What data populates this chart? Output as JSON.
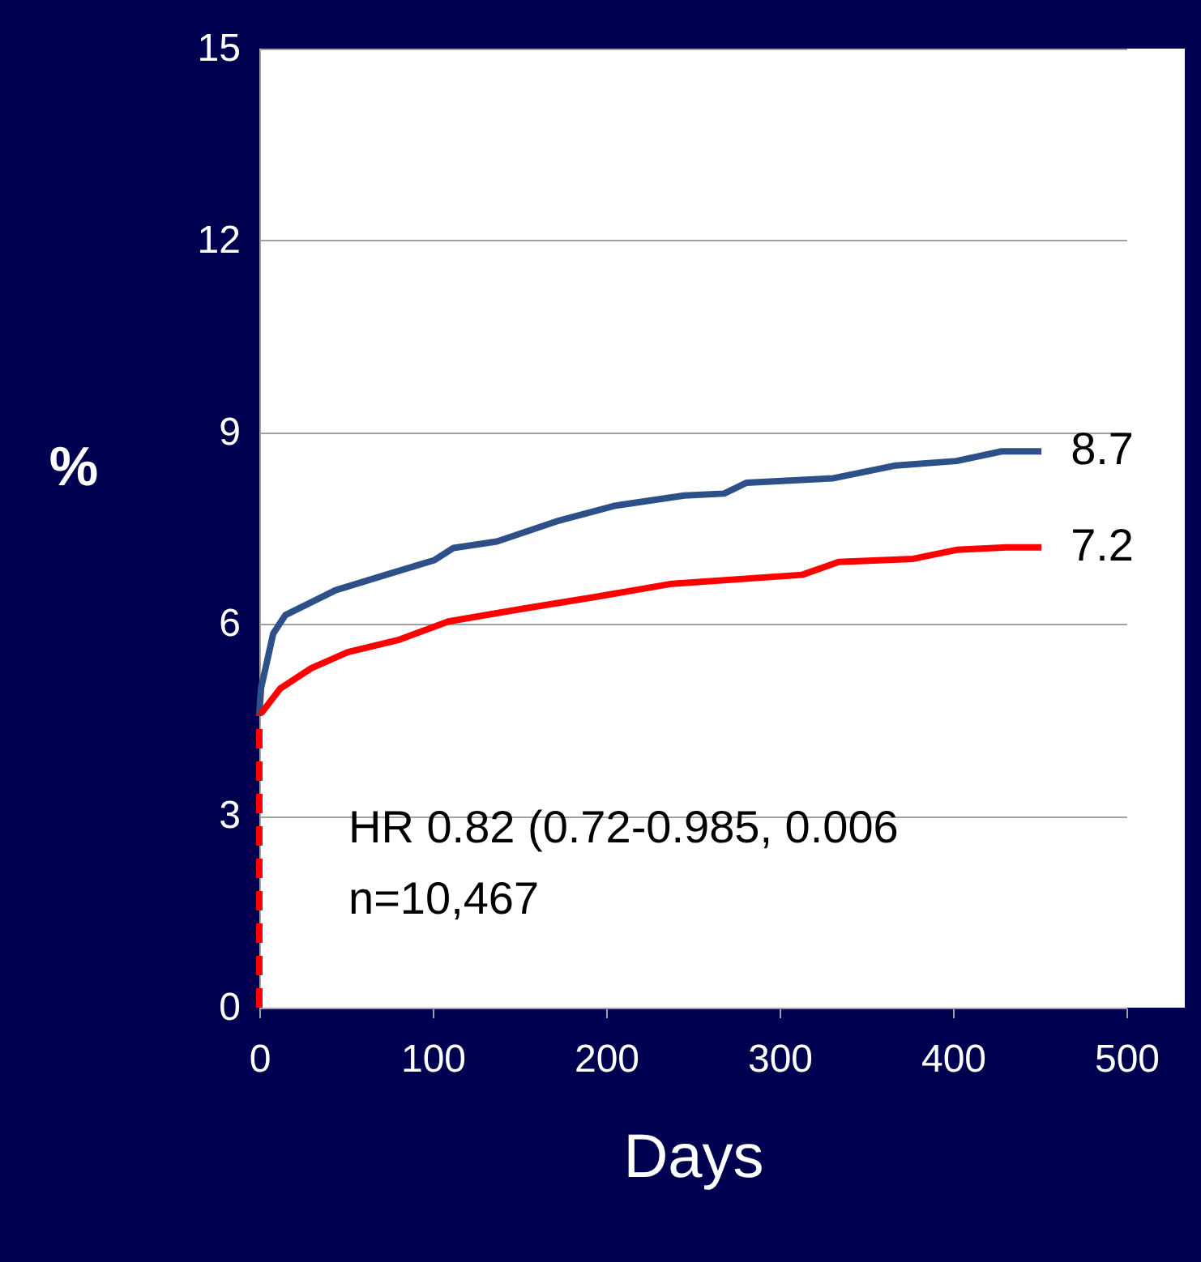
{
  "chart_data": {
    "type": "line",
    "xlabel": "Days",
    "ylabel": "%",
    "series": [
      {
        "color": "#2e5088",
        "x": [
          0,
          1,
          4,
          8,
          15,
          44,
          73,
          101,
          112,
          137,
          173,
          205,
          245,
          268,
          281,
          331,
          367,
          402,
          428,
          451
        ],
        "values": [
          4.6,
          5.0,
          5.36,
          5.85,
          6.14,
          6.53,
          6.77,
          7.0,
          7.19,
          7.29,
          7.62,
          7.85,
          8.01,
          8.04,
          8.21,
          8.28,
          8.48,
          8.55,
          8.7,
          8.7
        ]
      },
      {
        "color": "#ff0000",
        "x": [
          1,
          12,
          30,
          51,
          80,
          109,
          152,
          195,
          238,
          313,
          334,
          377,
          402,
          431,
          451
        ],
        "values": [
          4.6,
          4.99,
          5.31,
          5.56,
          5.75,
          6.04,
          6.24,
          6.43,
          6.63,
          6.77,
          6.97,
          7.02,
          7.16,
          7.2,
          7.2
        ]
      },
      {
        "color": "#ff0000",
        "type": "line",
        "line_style": "dashed",
        "x": [
          0,
          0
        ],
        "values": [
          0,
          4.6
        ]
      }
    ],
    "xlim": [
      0,
      500
    ],
    "xticks": [
      0,
      100,
      200,
      300,
      400,
      500
    ],
    "ylim": [
      0,
      15
    ],
    "yticks": [
      0,
      3,
      6,
      9,
      12,
      15
    ],
    "grid": "y",
    "annotations": [
      {
        "text": "8.7",
        "x": 451,
        "y": 8.7
      },
      {
        "text": "7.2",
        "x": 451,
        "y": 7.2
      },
      "HR 0.82 (0.72-0.985, 0.006",
      "n=10,467"
    ]
  }
}
